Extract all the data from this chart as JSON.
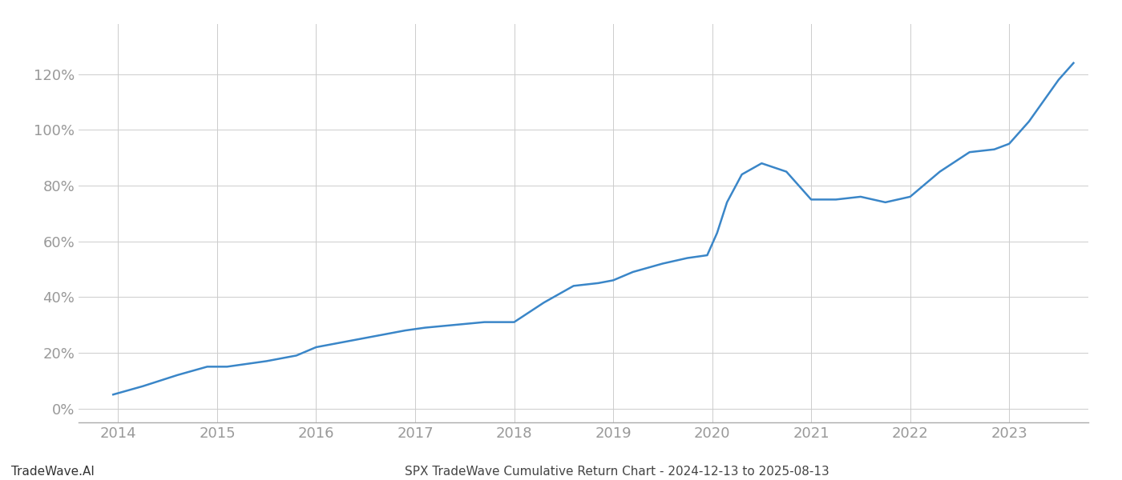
{
  "title": "SPX TradeWave Cumulative Return Chart - 2024-12-13 to 2025-08-13",
  "watermark": "TradeWave.AI",
  "line_color": "#3a86c8",
  "background_color": "#ffffff",
  "grid_color": "#cccccc",
  "x_years": [
    2013.95,
    2014.25,
    2014.6,
    2014.9,
    2015.1,
    2015.5,
    2015.8,
    2016.0,
    2016.3,
    2016.6,
    2016.9,
    2017.1,
    2017.4,
    2017.7,
    2018.0,
    2018.3,
    2018.6,
    2018.85,
    2019.0,
    2019.2,
    2019.5,
    2019.75,
    2019.95,
    2020.05,
    2020.15,
    2020.3,
    2020.5,
    2020.75,
    2021.0,
    2021.25,
    2021.5,
    2021.75,
    2022.0,
    2022.3,
    2022.6,
    2022.85,
    2023.0,
    2023.2,
    2023.5,
    2023.65
  ],
  "y_values": [
    5,
    8,
    12,
    15,
    15,
    17,
    19,
    22,
    24,
    26,
    28,
    29,
    30,
    31,
    31,
    38,
    44,
    45,
    46,
    49,
    52,
    54,
    55,
    63,
    74,
    84,
    88,
    85,
    75,
    75,
    76,
    74,
    76,
    85,
    92,
    93,
    95,
    103,
    118,
    124
  ],
  "xlim": [
    2013.6,
    2023.8
  ],
  "ylim": [
    -5,
    138
  ],
  "yticks": [
    0,
    20,
    40,
    60,
    80,
    100,
    120
  ],
  "xticks": [
    2014,
    2015,
    2016,
    2017,
    2018,
    2019,
    2020,
    2021,
    2022,
    2023
  ],
  "tick_label_color": "#999999",
  "axis_color": "#aaaaaa",
  "line_width": 1.8,
  "title_fontsize": 11,
  "watermark_fontsize": 11,
  "tick_fontsize": 13
}
